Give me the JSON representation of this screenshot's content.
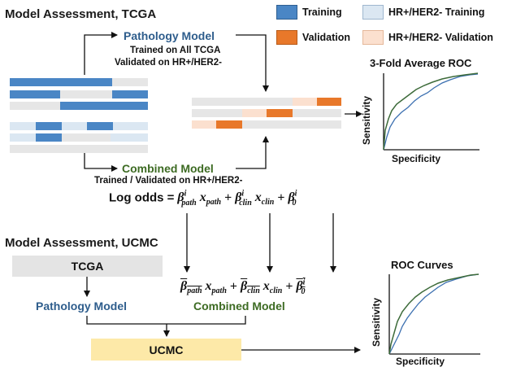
{
  "tcga": {
    "section_title": "Model Assessment, TCGA",
    "pathology_model": "Pathology Model",
    "pathology_line1": "Trained on All TCGA",
    "pathology_line2": "Validated on HR+/HER2-",
    "combined_model": "Combined Model",
    "combined_line": "Trained / Validated on HR+/HER2-"
  },
  "legend": {
    "training": "Training",
    "validation": "Validation",
    "hr_training": "HR+/HER2- Training",
    "hr_validation": "HR+/HER2- Validation",
    "colors": {
      "training": "#4a86c5",
      "validation": "#e8782a",
      "hr_training": "#dbe7f2",
      "hr_validation": "#fbe0cf",
      "empty": "#e6e6e6"
    }
  },
  "roc_top": {
    "title": "3-Fold Average ROC",
    "ylabel": "Sensitivity",
    "xlabel": "Specificity"
  },
  "equation": {
    "label": "Log odds =",
    "term1_beta": "β",
    "term1_sup": "i",
    "term1_sub": "path",
    "term1_x": "x",
    "term1_xsub": "path",
    "plus": "+",
    "term2_beta": "β",
    "term2_sup": "i",
    "term2_sub": "clin",
    "term2_x": "x",
    "term2_xsub": "clin",
    "term3_beta": "β",
    "term3_sup": "i",
    "term3_sub": "0"
  },
  "ucmc": {
    "section_title": "Model Assessment, UCMC",
    "tcga_box": "TCGA",
    "pathology_model": "Pathology Model",
    "combined_model": "Combined Model",
    "ucmc_box": "UCMC"
  },
  "roc_bottom": {
    "title": "ROC Curves",
    "ylabel": "Sensitivity",
    "xlabel": "Specificity"
  },
  "colors": {
    "pathology_blue": "#2e5d8c",
    "combined_green": "#3d6b23",
    "roc_green": "#3d6b3a",
    "roc_blue": "#3b6fb0"
  }
}
